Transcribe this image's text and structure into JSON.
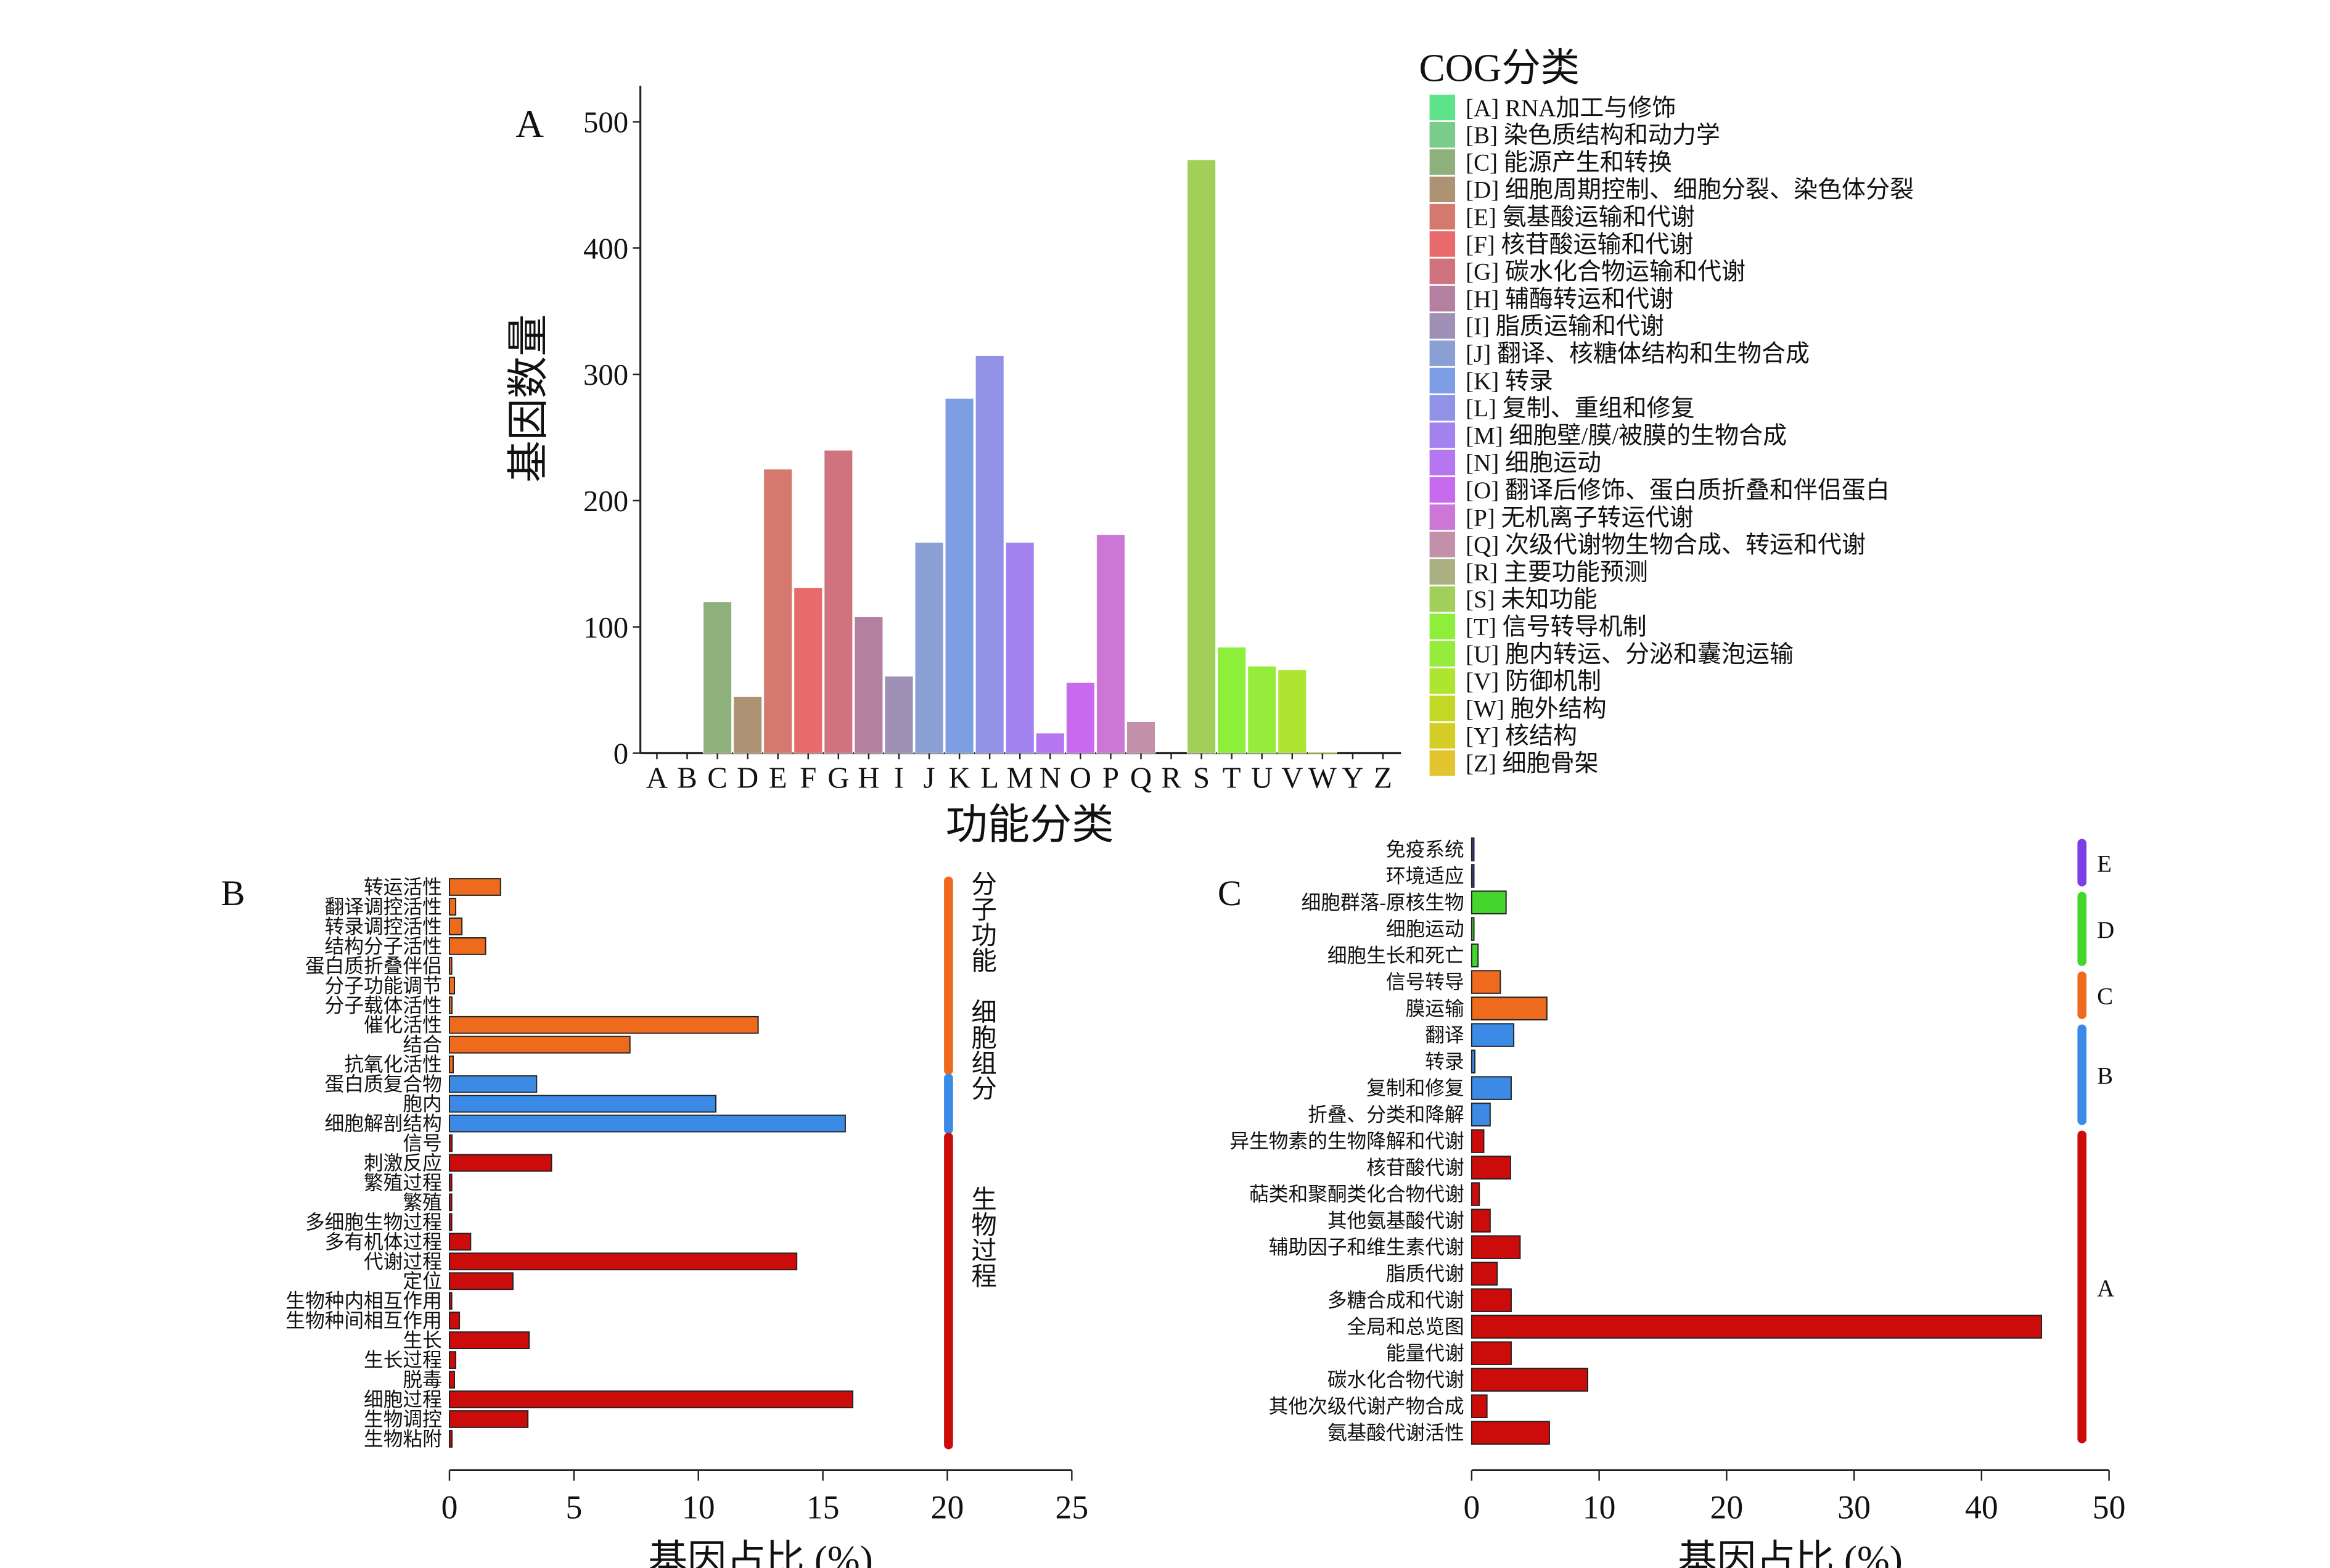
{
  "chart_data": [
    {
      "type": "bar",
      "panel_label": "A",
      "xlabel": "功能分类",
      "ylabel": "基因数量",
      "ylim": [
        0,
        520
      ],
      "yticks": [
        "0",
        "100",
        "200",
        "300",
        "400",
        "500"
      ],
      "categories": [
        "A",
        "B",
        "C",
        "D",
        "E",
        "F",
        "G",
        "H",
        "I",
        "J",
        "K",
        "L",
        "M",
        "N",
        "O",
        "P",
        "Q",
        "R",
        "S",
        "T",
        "U",
        "V",
        "W",
        "Y",
        "Z"
      ],
      "values": [
        0,
        0,
        120,
        45,
        225,
        131,
        240,
        108,
        61,
        167,
        281,
        315,
        167,
        16,
        56,
        173,
        25,
        0,
        470,
        84,
        69,
        66,
        1,
        0,
        0
      ],
      "colors": [
        "#5de38a",
        "#79cc8a",
        "#8eb07a",
        "#ae9274",
        "#d5786e",
        "#e96a6a",
        "#cf747e",
        "#b3819f",
        "#9e91b5",
        "#8a9fd4",
        "#7d9ee2",
        "#9191e6",
        "#a383ef",
        "#b577f0",
        "#c76aee",
        "#cc77d6",
        "#c290a8",
        "#aab081",
        "#a2cf5a",
        "#8def3a",
        "#96ec3a",
        "#ade530",
        "#c3d826",
        "#d4cd26",
        "#e2c42f"
      ],
      "legend_title": "COG分类",
      "legend_placement": "right",
      "legend": [
        "[A] RNA加工与修饰",
        "[B] 染色质结构和动力学",
        "[C] 能源产生和转换",
        "[D] 细胞周期控制、细胞分裂、染色体分裂",
        "[E] 氨基酸运输和代谢",
        "[F] 核苷酸运输和代谢",
        "[G] 碳水化合物运输和代谢",
        "[H] 辅酶转运和代谢",
        "[I] 脂质运输和代谢",
        "[J] 翻译、核糖体结构和生物合成",
        "[K] 转录",
        "[L] 复制、重组和修复",
        "[M] 细胞壁/膜/被膜的生物合成",
        "[N] 细胞运动",
        "[O] 翻译后修饰、蛋白质折叠和伴侣蛋白",
        "[P] 无机离子转运代谢",
        "[Q] 次级代谢物生物合成、转运和代谢",
        "[R] 主要功能预测",
        "[S] 未知功能",
        "[T] 信号转导机制",
        "[U] 胞内转运、分泌和囊泡运输",
        "[V] 防御机制",
        "[W] 胞外结构",
        "[Y] 核结构",
        "[Z] 细胞骨架"
      ]
    },
    {
      "type": "bar",
      "orientation": "horizontal",
      "panel_label": "B",
      "xlabel": "基因占比 (%)",
      "xlim": [
        0,
        25
      ],
      "xticks": [
        "0",
        "5",
        "10",
        "15",
        "20",
        "25"
      ],
      "categories": [
        "转运活性",
        "翻译调控活性",
        "转录调控活性",
        "结构分子活性",
        "蛋白质折叠伴侣",
        "分子功能调节",
        "分子载体活性",
        "催化活性",
        "结合",
        "抗氧化活性",
        "蛋白质复合物",
        "胞内",
        "细胞解剖结构",
        "信号",
        "刺激反应",
        "繁殖过程",
        "繁殖",
        "多细胞生物过程",
        "多有机体过程",
        "代谢过程",
        "定位",
        "生物种内相互作用",
        "生物种间相互作用",
        "生长",
        "生长过程",
        "脱毒",
        "细胞过程",
        "生物调控",
        "生物粘附"
      ],
      "values": [
        2.05,
        0.25,
        0.5,
        1.45,
        0.05,
        0.2,
        0.1,
        12.4,
        7.25,
        0.15,
        3.5,
        10.7,
        15.9,
        0.1,
        4.1,
        0.05,
        0.05,
        0.05,
        0.85,
        13.95,
        2.55,
        0.05,
        0.4,
        3.2,
        0.25,
        0.2,
        16.2,
        3.15,
        0.1
      ],
      "group_index": [
        0,
        0,
        0,
        0,
        0,
        0,
        0,
        0,
        0,
        0,
        1,
        1,
        1,
        2,
        2,
        2,
        2,
        2,
        2,
        2,
        2,
        2,
        2,
        2,
        2,
        2,
        2,
        2,
        2
      ],
      "groups": [
        {
          "name": "分子功能",
          "color": "#ee6a1c"
        },
        {
          "name": "细胞组分",
          "color": "#3b8be6"
        },
        {
          "name": "生物过程",
          "color": "#cc0b0b"
        }
      ]
    },
    {
      "type": "bar",
      "orientation": "horizontal",
      "panel_label": "C",
      "xlabel": "基因占比 (%)",
      "xlim": [
        0,
        50
      ],
      "xticks": [
        "0",
        "10",
        "20",
        "30",
        "40",
        "50"
      ],
      "categories": [
        "免疫系统",
        "环境适应",
        "细胞群落-原核生物",
        "细胞运动",
        "细胞生长和死亡",
        "信号转导",
        "膜运输",
        "翻译",
        "转录",
        "复制和修复",
        "折叠、分类和降解",
        "异生物素的生物降解和代谢",
        "核苷酸代谢",
        "萜类和聚酮类化合物代谢",
        "其他氨基酸代谢",
        "辅助因子和维生素代谢",
        "脂质代谢",
        "多糖合成和代谢",
        "全局和总览图",
        "能量代谢",
        "碳水化合物代谢",
        "其他次级代谢产物合成",
        "氨基酸代谢活性"
      ],
      "values": [
        0.1,
        0.1,
        2.7,
        0.15,
        0.5,
        2.25,
        5.9,
        3.3,
        0.25,
        3.1,
        1.45,
        0.95,
        3.05,
        0.6,
        1.45,
        3.8,
        2.0,
        3.1,
        44.7,
        3.1,
        9.1,
        1.2,
        6.1
      ],
      "group_index": [
        0,
        0,
        1,
        1,
        1,
        2,
        2,
        3,
        3,
        3,
        3,
        4,
        4,
        4,
        4,
        4,
        4,
        4,
        4,
        4,
        4,
        4,
        4
      ],
      "groups": [
        {
          "name": "E",
          "color": "#7b3fe6",
          "bar_color": "#34408a"
        },
        {
          "name": "D",
          "color": "#44d62c",
          "bar_color": "#44d62c"
        },
        {
          "name": "C",
          "color": "#ee6a1c",
          "bar_color": "#ee6a1c"
        },
        {
          "name": "B",
          "color": "#3b8be6",
          "bar_color": "#3b8be6"
        },
        {
          "name": "A",
          "color": "#cc0b0b",
          "bar_color": "#cc0b0b"
        }
      ]
    }
  ]
}
